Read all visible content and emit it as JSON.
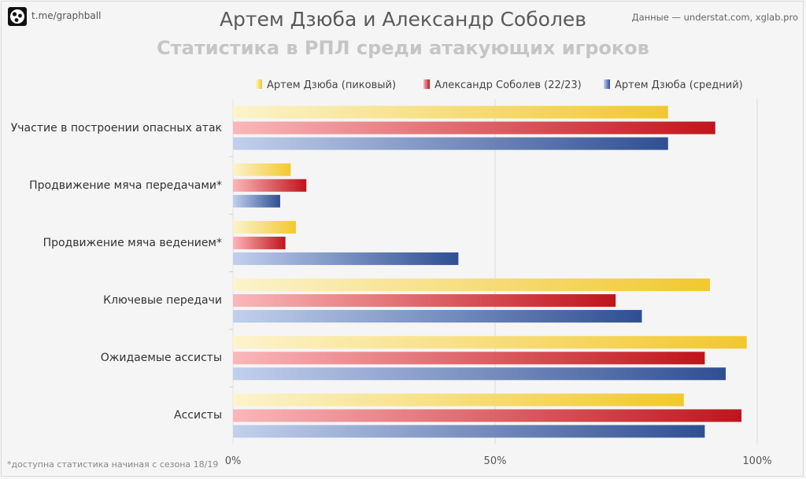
{
  "header": {
    "logo_text": "t.me/graphball",
    "source": "Данные — understat.com, xglab.pro",
    "title": "Артем Дзюба и Александр Соболев",
    "subtitle": "Статистика в РПЛ среди атакующих игроков"
  },
  "footnote": "*доступна статистика начиная с сезона 18/19",
  "colors": {
    "dzyuba_peak": [
      "#fbf3cc",
      "#f2c82e"
    ],
    "sobolev": [
      "#fbb7b9",
      "#c0141c"
    ],
    "dzyuba_avg": [
      "#c2d0ed",
      "#2f4f92"
    ]
  },
  "chart_data": {
    "type": "bar",
    "orientation": "horizontal",
    "categories": [
      "Участие в построении опасных атак",
      "Продвижение мяча передачами*",
      "Продвижение мяча ведением*",
      "Ключевые передачи",
      "Ожидаемые ассисты",
      "Ассисты"
    ],
    "series": [
      {
        "name": "Артем Дзюба (пиковый)",
        "values": [
          83,
          11,
          12,
          91,
          98,
          86
        ]
      },
      {
        "name": "Александр Соболев (22/23)",
        "values": [
          92,
          14,
          10,
          73,
          90,
          97
        ]
      },
      {
        "name": "Артем Дзюба (средний)",
        "values": [
          83,
          9,
          43,
          78,
          94,
          90
        ]
      }
    ],
    "xlim": [
      0,
      100
    ],
    "ticks": [
      "0%",
      "50%",
      "100%"
    ],
    "grid": true,
    "legend": "top"
  }
}
